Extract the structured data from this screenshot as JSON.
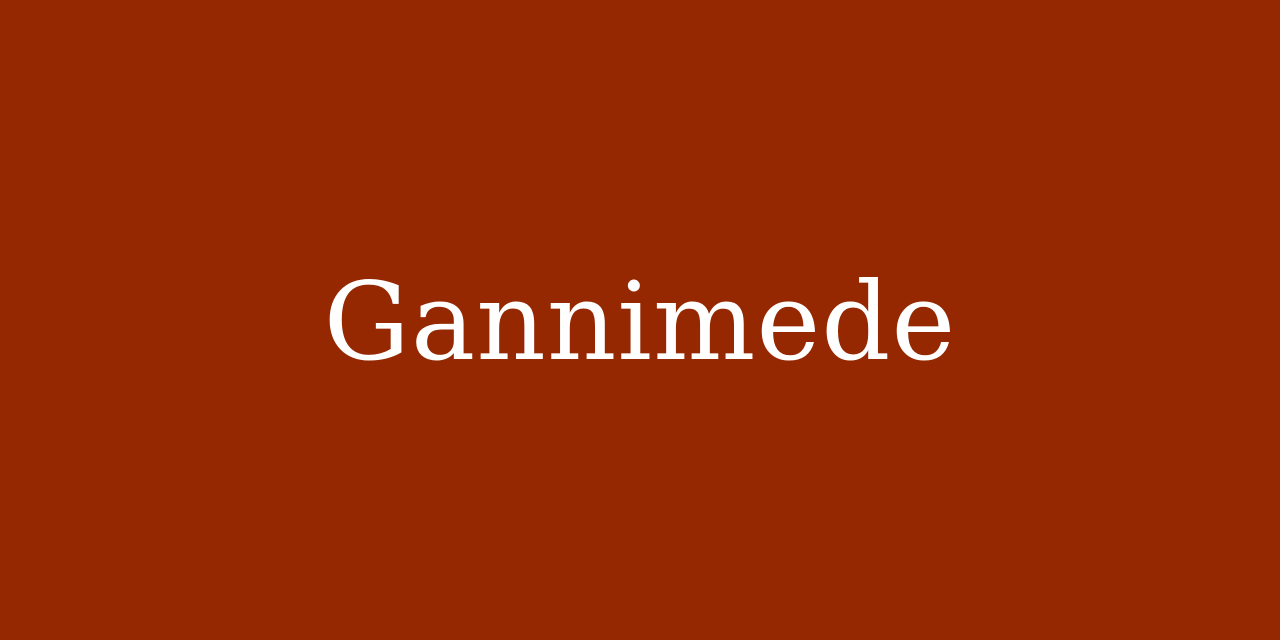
{
  "banner": {
    "title": "Gannimede",
    "background_color": "#952800",
    "text_color": "#ffffff"
  }
}
